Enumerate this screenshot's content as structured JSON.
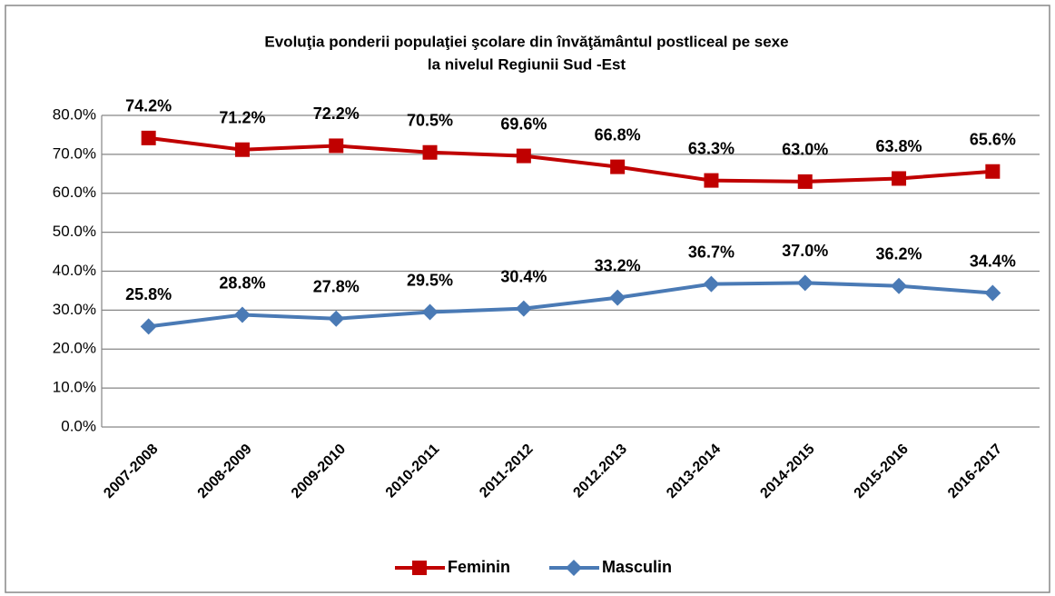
{
  "chart_data": {
    "type": "line",
    "title": "Evoluţia ponderii populaţiei şcolare din învăţământul postliceal pe sexe",
    "subtitle": "la nivelul Regiunii Sud -Est",
    "categories": [
      "2007-2008",
      "2008-2009",
      "2009-2010",
      "2010-2011",
      "2011-2012",
      "2012.2013",
      "2013-2014",
      "2014-2015",
      "2015-2016",
      "2016-2017"
    ],
    "series": [
      {
        "name": "Feminin",
        "color": "#c00000",
        "marker": "square",
        "values": [
          74.2,
          71.2,
          72.2,
          70.5,
          69.6,
          66.8,
          63.3,
          63.0,
          63.8,
          65.6
        ],
        "value_labels": [
          "74.2%",
          "71.2%",
          "72.2%",
          "70.5%",
          "69.6%",
          "66.8%",
          "63.3%",
          "63.0%",
          "63.8%",
          "65.6%"
        ]
      },
      {
        "name": "Masculin",
        "color": "#4a7ab5",
        "marker": "diamond",
        "values": [
          25.8,
          28.8,
          27.8,
          29.5,
          30.4,
          33.2,
          36.7,
          37.0,
          36.2,
          34.4
        ],
        "value_labels": [
          "25.8%",
          "28.8%",
          "27.8%",
          "29.5%",
          "30.4%",
          "33.2%",
          "36.7%",
          "37.0%",
          "36.2%",
          "34.4%"
        ]
      }
    ],
    "ylim": [
      0,
      80
    ],
    "yticks": [
      {
        "value": 0,
        "label": "0.0%"
      },
      {
        "value": 10,
        "label": "10.0%"
      },
      {
        "value": 20,
        "label": "20.0%"
      },
      {
        "value": 30,
        "label": "30.0%"
      },
      {
        "value": 40,
        "label": "40.0%"
      },
      {
        "value": 50,
        "label": "50.0%"
      },
      {
        "value": 60,
        "label": "60.0%"
      },
      {
        "value": 70,
        "label": "70.0%"
      },
      {
        "value": 80,
        "label": "80.0%"
      }
    ],
    "grid": true,
    "legend": "bottom"
  }
}
